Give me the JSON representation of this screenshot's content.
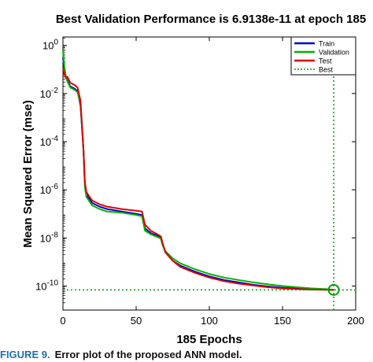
{
  "chart_data": {
    "type": "line",
    "title": "Best Validation Performance is 6.9138e-11 at epoch 185",
    "xlabel": "185 Epochs",
    "ylabel": "Mean Squared Error  (mse)",
    "xlim": [
      0,
      200
    ],
    "ylim_log10": [
      -11,
      0.35
    ],
    "yscale": "log",
    "xticks": [
      0,
      50,
      100,
      150,
      200
    ],
    "yticks": [
      {
        "exp": 0,
        "label": "10",
        "sup": "0"
      },
      {
        "exp": -2,
        "label": "10",
        "sup": "-2"
      },
      {
        "exp": -4,
        "label": "10",
        "sup": "-4"
      },
      {
        "exp": -6,
        "label": "10",
        "sup": "-6"
      },
      {
        "exp": -8,
        "label": "10",
        "sup": "-8"
      },
      {
        "exp": -10,
        "label": "10",
        "sup": "-10"
      }
    ],
    "grid": false,
    "legend_position": "top-right",
    "series": [
      {
        "name": "Train",
        "color": "#0000cc",
        "log10_values": [
          [
            0,
            -0.5
          ],
          [
            1,
            -1.0
          ],
          [
            2,
            -1.3
          ],
          [
            3,
            -1.45
          ],
          [
            5,
            -1.7
          ],
          [
            8,
            -1.8
          ],
          [
            10,
            -1.9
          ],
          [
            12,
            -2.5
          ],
          [
            14,
            -4.3
          ],
          [
            15,
            -5.8
          ],
          [
            16,
            -6.2
          ],
          [
            20,
            -6.55
          ],
          [
            25,
            -6.7
          ],
          [
            30,
            -6.8
          ],
          [
            40,
            -6.9
          ],
          [
            50,
            -7.0
          ],
          [
            54,
            -7.05
          ],
          [
            56,
            -7.6
          ],
          [
            60,
            -7.8
          ],
          [
            66,
            -7.95
          ],
          [
            67,
            -8.0
          ],
          [
            68,
            -8.25
          ],
          [
            70,
            -8.6
          ],
          [
            75,
            -8.95
          ],
          [
            80,
            -9.15
          ],
          [
            90,
            -9.4
          ],
          [
            100,
            -9.6
          ],
          [
            110,
            -9.75
          ],
          [
            120,
            -9.85
          ],
          [
            130,
            -9.95
          ],
          [
            140,
            -10.02
          ],
          [
            150,
            -10.07
          ],
          [
            160,
            -10.1
          ],
          [
            170,
            -10.13
          ],
          [
            180,
            -10.15
          ],
          [
            185,
            -10.16
          ]
        ]
      },
      {
        "name": "Validation",
        "color": "#00b400",
        "log10_values": [
          [
            0,
            -0.2
          ],
          [
            1,
            -0.9
          ],
          [
            2,
            -1.3
          ],
          [
            3,
            -1.5
          ],
          [
            5,
            -1.75
          ],
          [
            8,
            -1.85
          ],
          [
            10,
            -1.95
          ],
          [
            12,
            -2.4
          ],
          [
            14,
            -4.3
          ],
          [
            15,
            -5.9
          ],
          [
            16,
            -6.3
          ],
          [
            20,
            -6.65
          ],
          [
            25,
            -6.8
          ],
          [
            30,
            -6.9
          ],
          [
            40,
            -6.95
          ],
          [
            50,
            -7.05
          ],
          [
            54,
            -7.1
          ],
          [
            56,
            -7.7
          ],
          [
            60,
            -7.85
          ],
          [
            66,
            -8.0
          ],
          [
            67,
            -8.05
          ],
          [
            68,
            -8.3
          ],
          [
            70,
            -8.55
          ],
          [
            75,
            -8.85
          ],
          [
            80,
            -9.05
          ],
          [
            90,
            -9.3
          ],
          [
            100,
            -9.5
          ],
          [
            110,
            -9.65
          ],
          [
            120,
            -9.75
          ],
          [
            130,
            -9.85
          ],
          [
            140,
            -9.93
          ],
          [
            150,
            -10.0
          ],
          [
            160,
            -10.05
          ],
          [
            170,
            -10.1
          ],
          [
            180,
            -10.13
          ],
          [
            185,
            -10.16
          ]
        ]
      },
      {
        "name": "Test",
        "color": "#e00000",
        "log10_values": [
          [
            0,
            -0.9
          ],
          [
            1,
            -1.2
          ],
          [
            2,
            -1.35
          ],
          [
            3,
            -1.3
          ],
          [
            5,
            -1.55
          ],
          [
            8,
            -1.65
          ],
          [
            10,
            -1.75
          ],
          [
            12,
            -2.3
          ],
          [
            14,
            -4.3
          ],
          [
            15,
            -5.7
          ],
          [
            16,
            -6.1
          ],
          [
            20,
            -6.45
          ],
          [
            25,
            -6.6
          ],
          [
            30,
            -6.7
          ],
          [
            40,
            -6.8
          ],
          [
            50,
            -6.87
          ],
          [
            54,
            -6.9
          ],
          [
            56,
            -7.45
          ],
          [
            60,
            -7.7
          ],
          [
            66,
            -7.9
          ],
          [
            67,
            -7.95
          ],
          [
            68,
            -8.2
          ],
          [
            70,
            -8.6
          ],
          [
            75,
            -8.95
          ],
          [
            80,
            -9.2
          ],
          [
            90,
            -9.45
          ],
          [
            100,
            -9.65
          ],
          [
            110,
            -9.8
          ],
          [
            120,
            -9.9
          ],
          [
            130,
            -9.98
          ],
          [
            140,
            -10.05
          ],
          [
            150,
            -10.1
          ],
          [
            160,
            -10.13
          ],
          [
            170,
            -10.15
          ],
          [
            180,
            -10.16
          ],
          [
            185,
            -10.17
          ]
        ]
      },
      {
        "name": "Best",
        "color": "#00a000",
        "best_epoch": 185,
        "best_value": 6.9138e-11
      }
    ]
  },
  "caption": {
    "label": "FIGURE 9.",
    "text": "Error plot of the proposed ANN model."
  }
}
